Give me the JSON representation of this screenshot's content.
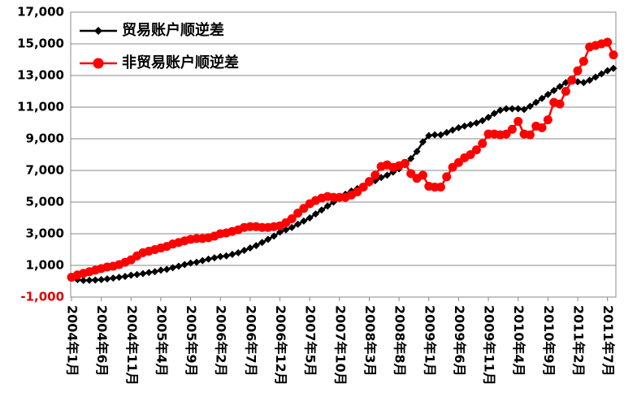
{
  "chart_data": {
    "type": "line",
    "categories": [
      "2004年1月",
      null,
      null,
      null,
      null,
      "2004年6月",
      null,
      null,
      null,
      null,
      "2004年11月",
      null,
      null,
      null,
      null,
      "2005年4月",
      null,
      null,
      null,
      null,
      "2005年9月",
      null,
      null,
      null,
      null,
      "2006年2月",
      null,
      null,
      null,
      null,
      "2006年7月",
      null,
      null,
      null,
      null,
      "2006年12月",
      null,
      null,
      null,
      null,
      "2007年5月",
      null,
      null,
      null,
      null,
      "2007年10月",
      null,
      null,
      null,
      null,
      "2008年3月",
      null,
      null,
      null,
      null,
      "2008年8月",
      null,
      null,
      null,
      null,
      "2009年1月",
      null,
      null,
      null,
      null,
      "2009年6月",
      null,
      null,
      null,
      null,
      "2009年11月",
      null,
      null,
      null,
      null,
      "2010年4月",
      null,
      null,
      null,
      null,
      "2010年9月",
      null,
      null,
      null,
      null,
      "2011年2月",
      null,
      null,
      null,
      null,
      "2011年7月",
      null
    ],
    "series": [
      {
        "name": "贸易账户顺逆差",
        "color": "#000000",
        "marker": "diamond",
        "values": [
          250,
          100,
          50,
          60,
          80,
          100,
          150,
          200,
          250,
          300,
          380,
          420,
          480,
          550,
          600,
          700,
          750,
          850,
          950,
          1050,
          1150,
          1200,
          1300,
          1400,
          1480,
          1560,
          1600,
          1700,
          1800,
          1950,
          2100,
          2250,
          2450,
          2650,
          2850,
          3100,
          3250,
          3400,
          3600,
          3800,
          4000,
          4250,
          4500,
          4750,
          5000,
          5250,
          5500,
          5700,
          5850,
          6000,
          6200,
          6350,
          6550,
          6700,
          6900,
          7100,
          7350,
          7750,
          8200,
          8800,
          9200,
          9250,
          9250,
          9400,
          9550,
          9700,
          9800,
          9900,
          10000,
          10150,
          10350,
          10600,
          10800,
          10900,
          10900,
          10900,
          10850,
          11050,
          11300,
          11550,
          11800,
          12050,
          12300,
          12550,
          12650,
          12600,
          12550,
          12700,
          12900,
          13100,
          13300,
          13450
        ]
      },
      {
        "name": "非贸易账户顺逆差",
        "color": "#ff0000",
        "marker": "circle",
        "values": [
          250,
          400,
          500,
          600,
          700,
          800,
          900,
          950,
          1050,
          1200,
          1350,
          1600,
          1800,
          1900,
          2000,
          2100,
          2200,
          2350,
          2450,
          2550,
          2650,
          2700,
          2700,
          2750,
          2850,
          3000,
          3050,
          3150,
          3250,
          3400,
          3450,
          3450,
          3400,
          3400,
          3450,
          3500,
          3700,
          3950,
          4300,
          4600,
          4900,
          5100,
          5250,
          5350,
          5300,
          5300,
          5300,
          5450,
          5650,
          5950,
          6300,
          6700,
          7250,
          7350,
          7200,
          7300,
          7450,
          6800,
          6500,
          6700,
          6000,
          5950,
          5950,
          6600,
          7200,
          7500,
          7800,
          8000,
          8300,
          8700,
          9300,
          9300,
          9250,
          9300,
          9600,
          10100,
          9300,
          9250,
          9800,
          9700,
          10200,
          11300,
          11200,
          12000,
          12700,
          13300,
          13900,
          14800,
          14900,
          15000,
          15100,
          14300
        ]
      }
    ],
    "ylim": [
      -1000,
      17000
    ],
    "yticks": [
      {
        "value": -1000,
        "label": "-1,000"
      },
      {
        "value": 1000,
        "label": "1,000"
      },
      {
        "value": 3000,
        "label": "3,000"
      },
      {
        "value": 5000,
        "label": "5,000"
      },
      {
        "value": 7000,
        "label": "7,000"
      },
      {
        "value": 9000,
        "label": "9,000"
      },
      {
        "value": 11000,
        "label": "11,000"
      },
      {
        "value": 13000,
        "label": "13,000"
      },
      {
        "value": 15000,
        "label": "15,000"
      },
      {
        "value": 17000,
        "label": "17,000"
      }
    ],
    "negative_tick_color": "#e00000",
    "grid": true,
    "legend": "upper left"
  }
}
